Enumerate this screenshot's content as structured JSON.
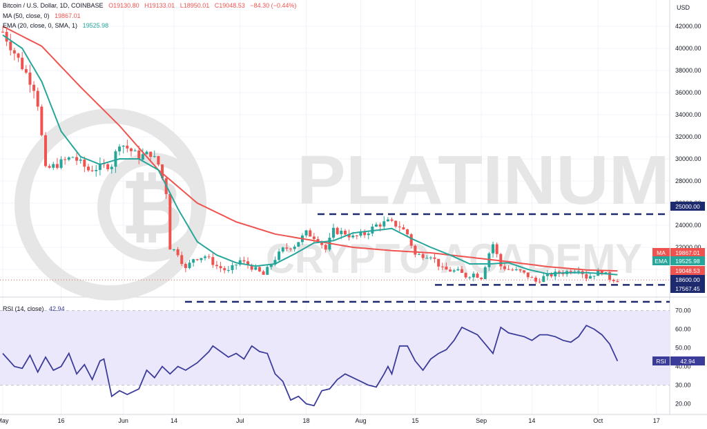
{
  "header": {
    "title": "Bitcoin / U.S. Dollar, 1D, COINBASE",
    "o": "O19130.80",
    "h": "H19133.01",
    "l": "L18950.01",
    "c": "C19048.53",
    "chg": "−84.30 (−0.44%)",
    "ma_label": "MA (50, close, 0)",
    "ma_value": "19867.01",
    "ema_label": "EMA (20, close, 0, SMA, 1)",
    "ema_value": "19525.98",
    "rsi_label": "RSI (14, close)",
    "rsi_value": "42.94"
  },
  "watermark": {
    "line1": "PLATINUM",
    "line2": "CRYPTO ACADEMY"
  },
  "price_axis": {
    "currency": "USD",
    "ticks": [
      "42000.00",
      "40000.00",
      "38000.00",
      "36000.00",
      "34000.00",
      "32000.00",
      "30000.00",
      "28000.00",
      "26000.00",
      "24000.00",
      "22000.00",
      "20000.00"
    ]
  },
  "rsi_axis": {
    "ticks": [
      "70.00",
      "60.00",
      "50.00",
      "40.00",
      "30.00",
      "20.00"
    ]
  },
  "time_axis": {
    "ticks": [
      "May",
      "16",
      "Jun",
      "14",
      "Jul",
      "18",
      "Aug",
      "15",
      "Sep",
      "14",
      "Oct",
      "17"
    ]
  },
  "badges": [
    {
      "label": "MA",
      "value": "19867.01",
      "color": "#ef5350"
    },
    {
      "label": "EMA",
      "value": "19525.98",
      "color": "#26a69a"
    },
    {
      "label": "",
      "value": "19048.53",
      "color": "#ef5350"
    },
    {
      "label": "",
      "value": "18600.00",
      "color": "#1e2a6e"
    },
    {
      "label": "",
      "value": "17567.45",
      "color": "#1e2a6e"
    },
    {
      "label": "",
      "value": "25000.00",
      "color": "#1e2a6e"
    },
    {
      "label": "RSI",
      "value": "42.94",
      "color": "#3b3b9a"
    }
  ],
  "colors": {
    "up": "#26a69a",
    "down": "#ef5350",
    "ma": "#ef5350",
    "ema": "#26a69a",
    "rsi": "#3b3b9a",
    "levels": "#1e2a6e",
    "rsi_band": "#ece8fb"
  },
  "chart_data": [
    {
      "type": "candlestick",
      "title": "Bitcoin / U.S. Dollar, 1D, COINBASE",
      "ylim": [
        19000,
        43000
      ],
      "y_scale": "log",
      "x_ticks": [
        "May",
        "16",
        "Jun",
        "14",
        "Jul",
        "18",
        "Aug",
        "15",
        "Sep",
        "14",
        "Oct",
        "17"
      ],
      "x_range_days": [
        0,
        170
      ],
      "x_tick_days": [
        0,
        15,
        31,
        44,
        61,
        78,
        92,
        106,
        123,
        136,
        153,
        168
      ],
      "close_anchors": [
        [
          0,
          41500
        ],
        [
          4,
          39000
        ],
        [
          8,
          36500
        ],
        [
          9,
          35000
        ],
        [
          11,
          29000
        ],
        [
          14,
          29500
        ],
        [
          18,
          30200
        ],
        [
          22,
          29000
        ],
        [
          28,
          29500
        ],
        [
          30,
          31500
        ],
        [
          35,
          30200
        ],
        [
          38,
          30500
        ],
        [
          40,
          29500
        ],
        [
          42,
          27000
        ],
        [
          43,
          22000
        ],
        [
          45,
          21500
        ],
        [
          47,
          20000
        ],
        [
          49,
          21000
        ],
        [
          52,
          21200
        ],
        [
          55,
          20300
        ],
        [
          58,
          19800
        ],
        [
          61,
          20800
        ],
        [
          64,
          20200
        ],
        [
          67,
          19500
        ],
        [
          70,
          21000
        ],
        [
          72,
          21800
        ],
        [
          75,
          22200
        ],
        [
          78,
          23300
        ],
        [
          81,
          22800
        ],
        [
          83,
          21800
        ],
        [
          85,
          23500
        ],
        [
          88,
          23300
        ],
        [
          90,
          22900
        ],
        [
          93,
          23200
        ],
        [
          96,
          24000
        ],
        [
          99,
          24300
        ],
        [
          102,
          23900
        ],
        [
          104,
          23200
        ],
        [
          106,
          21300
        ],
        [
          110,
          21300
        ],
        [
          113,
          20000
        ],
        [
          117,
          19800
        ],
        [
          119,
          19400
        ],
        [
          121,
          19600
        ],
        [
          123,
          19300
        ],
        [
          125,
          21500
        ],
        [
          126,
          22300
        ],
        [
          128,
          20300
        ],
        [
          130,
          20000
        ],
        [
          133,
          19800
        ],
        [
          135,
          19400
        ],
        [
          137,
          18900
        ],
        [
          139,
          19300
        ],
        [
          142,
          19600
        ],
        [
          145,
          19800
        ],
        [
          148,
          20100
        ],
        [
          150,
          19300
        ],
        [
          152,
          19600
        ],
        [
          154,
          19800
        ],
        [
          156,
          19200
        ],
        [
          158,
          19048
        ]
      ],
      "ma_anchors": [
        [
          0,
          42000
        ],
        [
          10,
          40200
        ],
        [
          20,
          36500
        ],
        [
          30,
          33000
        ],
        [
          40,
          29000
        ],
        [
          50,
          26000
        ],
        [
          60,
          24300
        ],
        [
          70,
          23200
        ],
        [
          80,
          22600
        ],
        [
          90,
          22000
        ],
        [
          100,
          21700
        ],
        [
          110,
          21500
        ],
        [
          120,
          21100
        ],
        [
          130,
          20700
        ],
        [
          140,
          20250
        ],
        [
          150,
          19950
        ],
        [
          158,
          19867
        ]
      ],
      "ema_anchors": [
        [
          0,
          41200
        ],
        [
          5,
          40000
        ],
        [
          10,
          37000
        ],
        [
          15,
          32500
        ],
        [
          20,
          30200
        ],
        [
          25,
          29500
        ],
        [
          30,
          30000
        ],
        [
          35,
          30000
        ],
        [
          40,
          29000
        ],
        [
          45,
          25500
        ],
        [
          50,
          22500
        ],
        [
          55,
          21300
        ],
        [
          60,
          20600
        ],
        [
          65,
          20300
        ],
        [
          70,
          20500
        ],
        [
          75,
          21400
        ],
        [
          80,
          22400
        ],
        [
          85,
          22600
        ],
        [
          90,
          23300
        ],
        [
          95,
          23500
        ],
        [
          100,
          23700
        ],
        [
          105,
          22800
        ],
        [
          110,
          22000
        ],
        [
          115,
          21300
        ],
        [
          120,
          20500
        ],
        [
          125,
          20500
        ],
        [
          130,
          20600
        ],
        [
          135,
          20000
        ],
        [
          140,
          19600
        ],
        [
          145,
          19700
        ],
        [
          150,
          19700
        ],
        [
          155,
          19600
        ],
        [
          158,
          19526
        ]
      ],
      "levels": [
        25000,
        18600,
        17567.45
      ]
    },
    {
      "type": "line",
      "title": "RSI (14, close)",
      "ylim": [
        15,
        75
      ],
      "band": [
        30,
        70
      ],
      "x_ticks": [
        "May",
        "16",
        "Jun",
        "14",
        "Jul",
        "18",
        "Aug",
        "15",
        "Sep",
        "14",
        "Oct",
        "17"
      ],
      "anchors": [
        [
          0,
          47
        ],
        [
          3,
          40
        ],
        [
          5,
          39
        ],
        [
          7,
          46
        ],
        [
          9,
          37
        ],
        [
          11,
          45
        ],
        [
          13,
          38
        ],
        [
          15,
          40
        ],
        [
          17,
          47
        ],
        [
          19,
          36
        ],
        [
          21,
          41
        ],
        [
          23,
          33
        ],
        [
          25,
          43
        ],
        [
          26,
          44
        ],
        [
          28,
          24
        ],
        [
          30,
          27
        ],
        [
          32,
          25
        ],
        [
          35,
          28
        ],
        [
          37,
          38
        ],
        [
          39,
          34
        ],
        [
          41,
          40
        ],
        [
          43,
          36
        ],
        [
          45,
          40
        ],
        [
          47,
          38
        ],
        [
          50,
          42
        ],
        [
          53,
          48
        ],
        [
          54,
          51
        ],
        [
          56,
          48
        ],
        [
          58,
          45
        ],
        [
          60,
          47
        ],
        [
          62,
          44
        ],
        [
          64,
          51
        ],
        [
          66,
          48
        ],
        [
          68,
          47
        ],
        [
          70,
          36
        ],
        [
          72,
          32
        ],
        [
          74,
          22
        ],
        [
          76,
          24
        ],
        [
          78,
          20
        ],
        [
          80,
          19
        ],
        [
          82,
          27
        ],
        [
          84,
          28
        ],
        [
          86,
          33
        ],
        [
          88,
          36
        ],
        [
          90,
          34
        ],
        [
          92,
          32
        ],
        [
          94,
          30
        ],
        [
          96,
          29
        ],
        [
          98,
          36
        ],
        [
          99,
          40
        ],
        [
          100,
          36
        ],
        [
          102,
          51
        ],
        [
          104,
          51
        ],
        [
          106,
          43
        ],
        [
          108,
          38
        ],
        [
          110,
          44
        ],
        [
          112,
          47
        ],
        [
          114,
          49
        ],
        [
          116,
          54
        ],
        [
          118,
          61
        ],
        [
          120,
          59
        ],
        [
          122,
          57
        ],
        [
          124,
          52
        ],
        [
          126,
          47
        ],
        [
          128,
          61
        ],
        [
          130,
          58
        ],
        [
          132,
          57
        ],
        [
          134,
          56
        ],
        [
          136,
          54
        ],
        [
          138,
          57
        ],
        [
          140,
          57
        ],
        [
          142,
          56
        ],
        [
          144,
          54
        ],
        [
          146,
          53
        ],
        [
          148,
          56
        ],
        [
          150,
          62
        ],
        [
          152,
          60
        ],
        [
          154,
          57
        ],
        [
          156,
          52
        ],
        [
          158,
          42.94
        ]
      ]
    }
  ]
}
